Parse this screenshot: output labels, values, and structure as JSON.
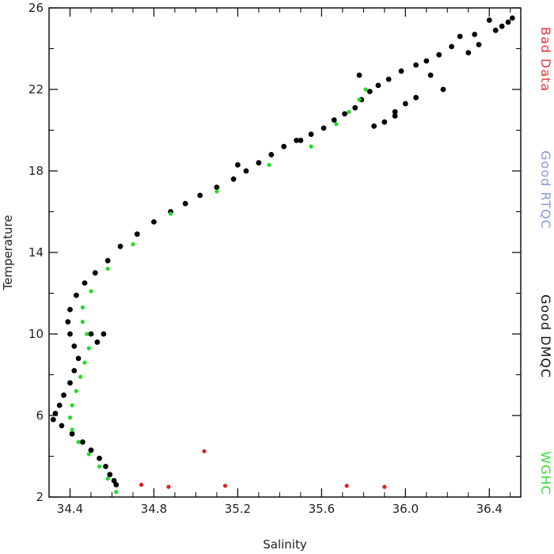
{
  "chart_data": {
    "type": "scatter",
    "xlabel": "Salinity",
    "ylabel": "Temperature",
    "xlim": [
      34.3,
      36.55
    ],
    "ylim": [
      2,
      26
    ],
    "x_ticks": [
      34.4,
      34.8,
      35.2,
      35.6,
      36.0,
      36.4
    ],
    "x_tick_labels": [
      "34.4",
      "34.8",
      "35.2",
      "35.6",
      "36.0",
      "36.4"
    ],
    "y_ticks": [
      2,
      6,
      10,
      14,
      18,
      22,
      26
    ],
    "y_tick_labels": [
      "2",
      "6",
      "10",
      "14",
      "18",
      "22",
      "26"
    ],
    "grid": false,
    "legend_placement": "right, vertical",
    "series": [
      {
        "name": "Good DMQC",
        "color": "#000000",
        "points": [
          [
            36.51,
            25.5
          ],
          [
            36.49,
            25.3
          ],
          [
            36.46,
            25.1
          ],
          [
            36.43,
            24.9
          ],
          [
            36.4,
            25.4
          ],
          [
            36.33,
            24.7
          ],
          [
            36.26,
            24.6
          ],
          [
            36.22,
            24.1
          ],
          [
            36.16,
            23.7
          ],
          [
            36.1,
            23.4
          ],
          [
            36.05,
            23.2
          ],
          [
            35.98,
            22.9
          ],
          [
            35.92,
            22.5
          ],
          [
            35.87,
            22.2
          ],
          [
            35.83,
            21.9
          ],
          [
            35.79,
            21.5
          ],
          [
            35.76,
            21.1
          ],
          [
            35.71,
            20.8
          ],
          [
            35.66,
            20.5
          ],
          [
            35.61,
            20.1
          ],
          [
            35.55,
            19.8
          ],
          [
            35.48,
            19.5
          ],
          [
            35.42,
            19.2
          ],
          [
            35.36,
            18.8
          ],
          [
            35.3,
            18.4
          ],
          [
            35.24,
            18.0
          ],
          [
            35.18,
            17.6
          ],
          [
            35.1,
            17.2
          ],
          [
            35.02,
            16.8
          ],
          [
            34.95,
            16.4
          ],
          [
            34.88,
            16.0
          ],
          [
            34.8,
            15.5
          ],
          [
            34.72,
            14.9
          ],
          [
            34.64,
            14.3
          ],
          [
            34.58,
            13.6
          ],
          [
            34.52,
            13.0
          ],
          [
            34.47,
            12.5
          ],
          [
            34.43,
            11.9
          ],
          [
            34.4,
            11.2
          ],
          [
            34.39,
            10.6
          ],
          [
            34.4,
            10.0
          ],
          [
            34.42,
            9.4
          ],
          [
            34.44,
            8.8
          ],
          [
            34.42,
            8.2
          ],
          [
            34.4,
            7.6
          ],
          [
            34.37,
            7.0
          ],
          [
            34.35,
            6.5
          ],
          [
            34.33,
            6.1
          ],
          [
            34.32,
            5.8
          ],
          [
            34.36,
            5.5
          ],
          [
            34.41,
            5.1
          ],
          [
            34.46,
            4.7
          ],
          [
            34.5,
            4.3
          ],
          [
            34.54,
            3.9
          ],
          [
            34.57,
            3.5
          ],
          [
            34.59,
            3.1
          ],
          [
            34.61,
            2.8
          ],
          [
            34.62,
            2.6
          ],
          [
            36.18,
            22.0
          ],
          [
            36.05,
            21.6
          ],
          [
            35.95,
            20.9
          ],
          [
            36.0,
            21.3
          ],
          [
            35.9,
            20.4
          ],
          [
            36.12,
            22.7
          ],
          [
            35.78,
            22.7
          ],
          [
            36.3,
            23.8
          ],
          [
            36.35,
            24.2
          ],
          [
            34.5,
            10.0
          ],
          [
            34.53,
            9.6
          ],
          [
            34.56,
            10.0
          ],
          [
            35.2,
            18.3
          ],
          [
            35.5,
            19.5
          ],
          [
            35.85,
            20.2
          ],
          [
            35.95,
            20.7
          ]
        ]
      },
      {
        "name": "WGHC",
        "color": "#22dd22",
        "points": [
          [
            34.62,
            2.25
          ],
          [
            34.58,
            2.9
          ],
          [
            34.54,
            3.5
          ],
          [
            34.49,
            4.1
          ],
          [
            34.44,
            4.7
          ],
          [
            34.41,
            5.3
          ],
          [
            34.4,
            5.9
          ],
          [
            34.41,
            6.5
          ],
          [
            34.43,
            7.2
          ],
          [
            34.45,
            7.9
          ],
          [
            34.47,
            8.6
          ],
          [
            34.49,
            9.3
          ],
          [
            34.48,
            10.0
          ],
          [
            34.46,
            10.6
          ],
          [
            34.46,
            11.3
          ],
          [
            34.5,
            12.1
          ],
          [
            34.58,
            13.2
          ],
          [
            34.7,
            14.4
          ],
          [
            34.88,
            15.9
          ],
          [
            35.1,
            17.0
          ],
          [
            35.35,
            18.3
          ],
          [
            35.55,
            19.2
          ],
          [
            35.67,
            20.3
          ],
          [
            35.73,
            20.9
          ],
          [
            35.78,
            21.5
          ],
          [
            35.81,
            22.0
          ]
        ]
      },
      {
        "name": "Bad Data",
        "color": "#dd2222",
        "points": [
          [
            34.74,
            2.6
          ],
          [
            34.87,
            2.5
          ],
          [
            35.04,
            4.25
          ],
          [
            35.14,
            2.55
          ],
          [
            35.72,
            2.55
          ],
          [
            35.9,
            2.5
          ]
        ]
      },
      {
        "name": "Good RTQC",
        "color": "#8899dd",
        "points": []
      }
    ],
    "legend": [
      {
        "label": "Bad Data",
        "color": "#ee3333"
      },
      {
        "label": "Good RTQC",
        "color": "#8899dd"
      },
      {
        "label": "Good DMQC",
        "color": "#111111"
      },
      {
        "label": "WGHC",
        "color": "#33dd33"
      }
    ]
  }
}
